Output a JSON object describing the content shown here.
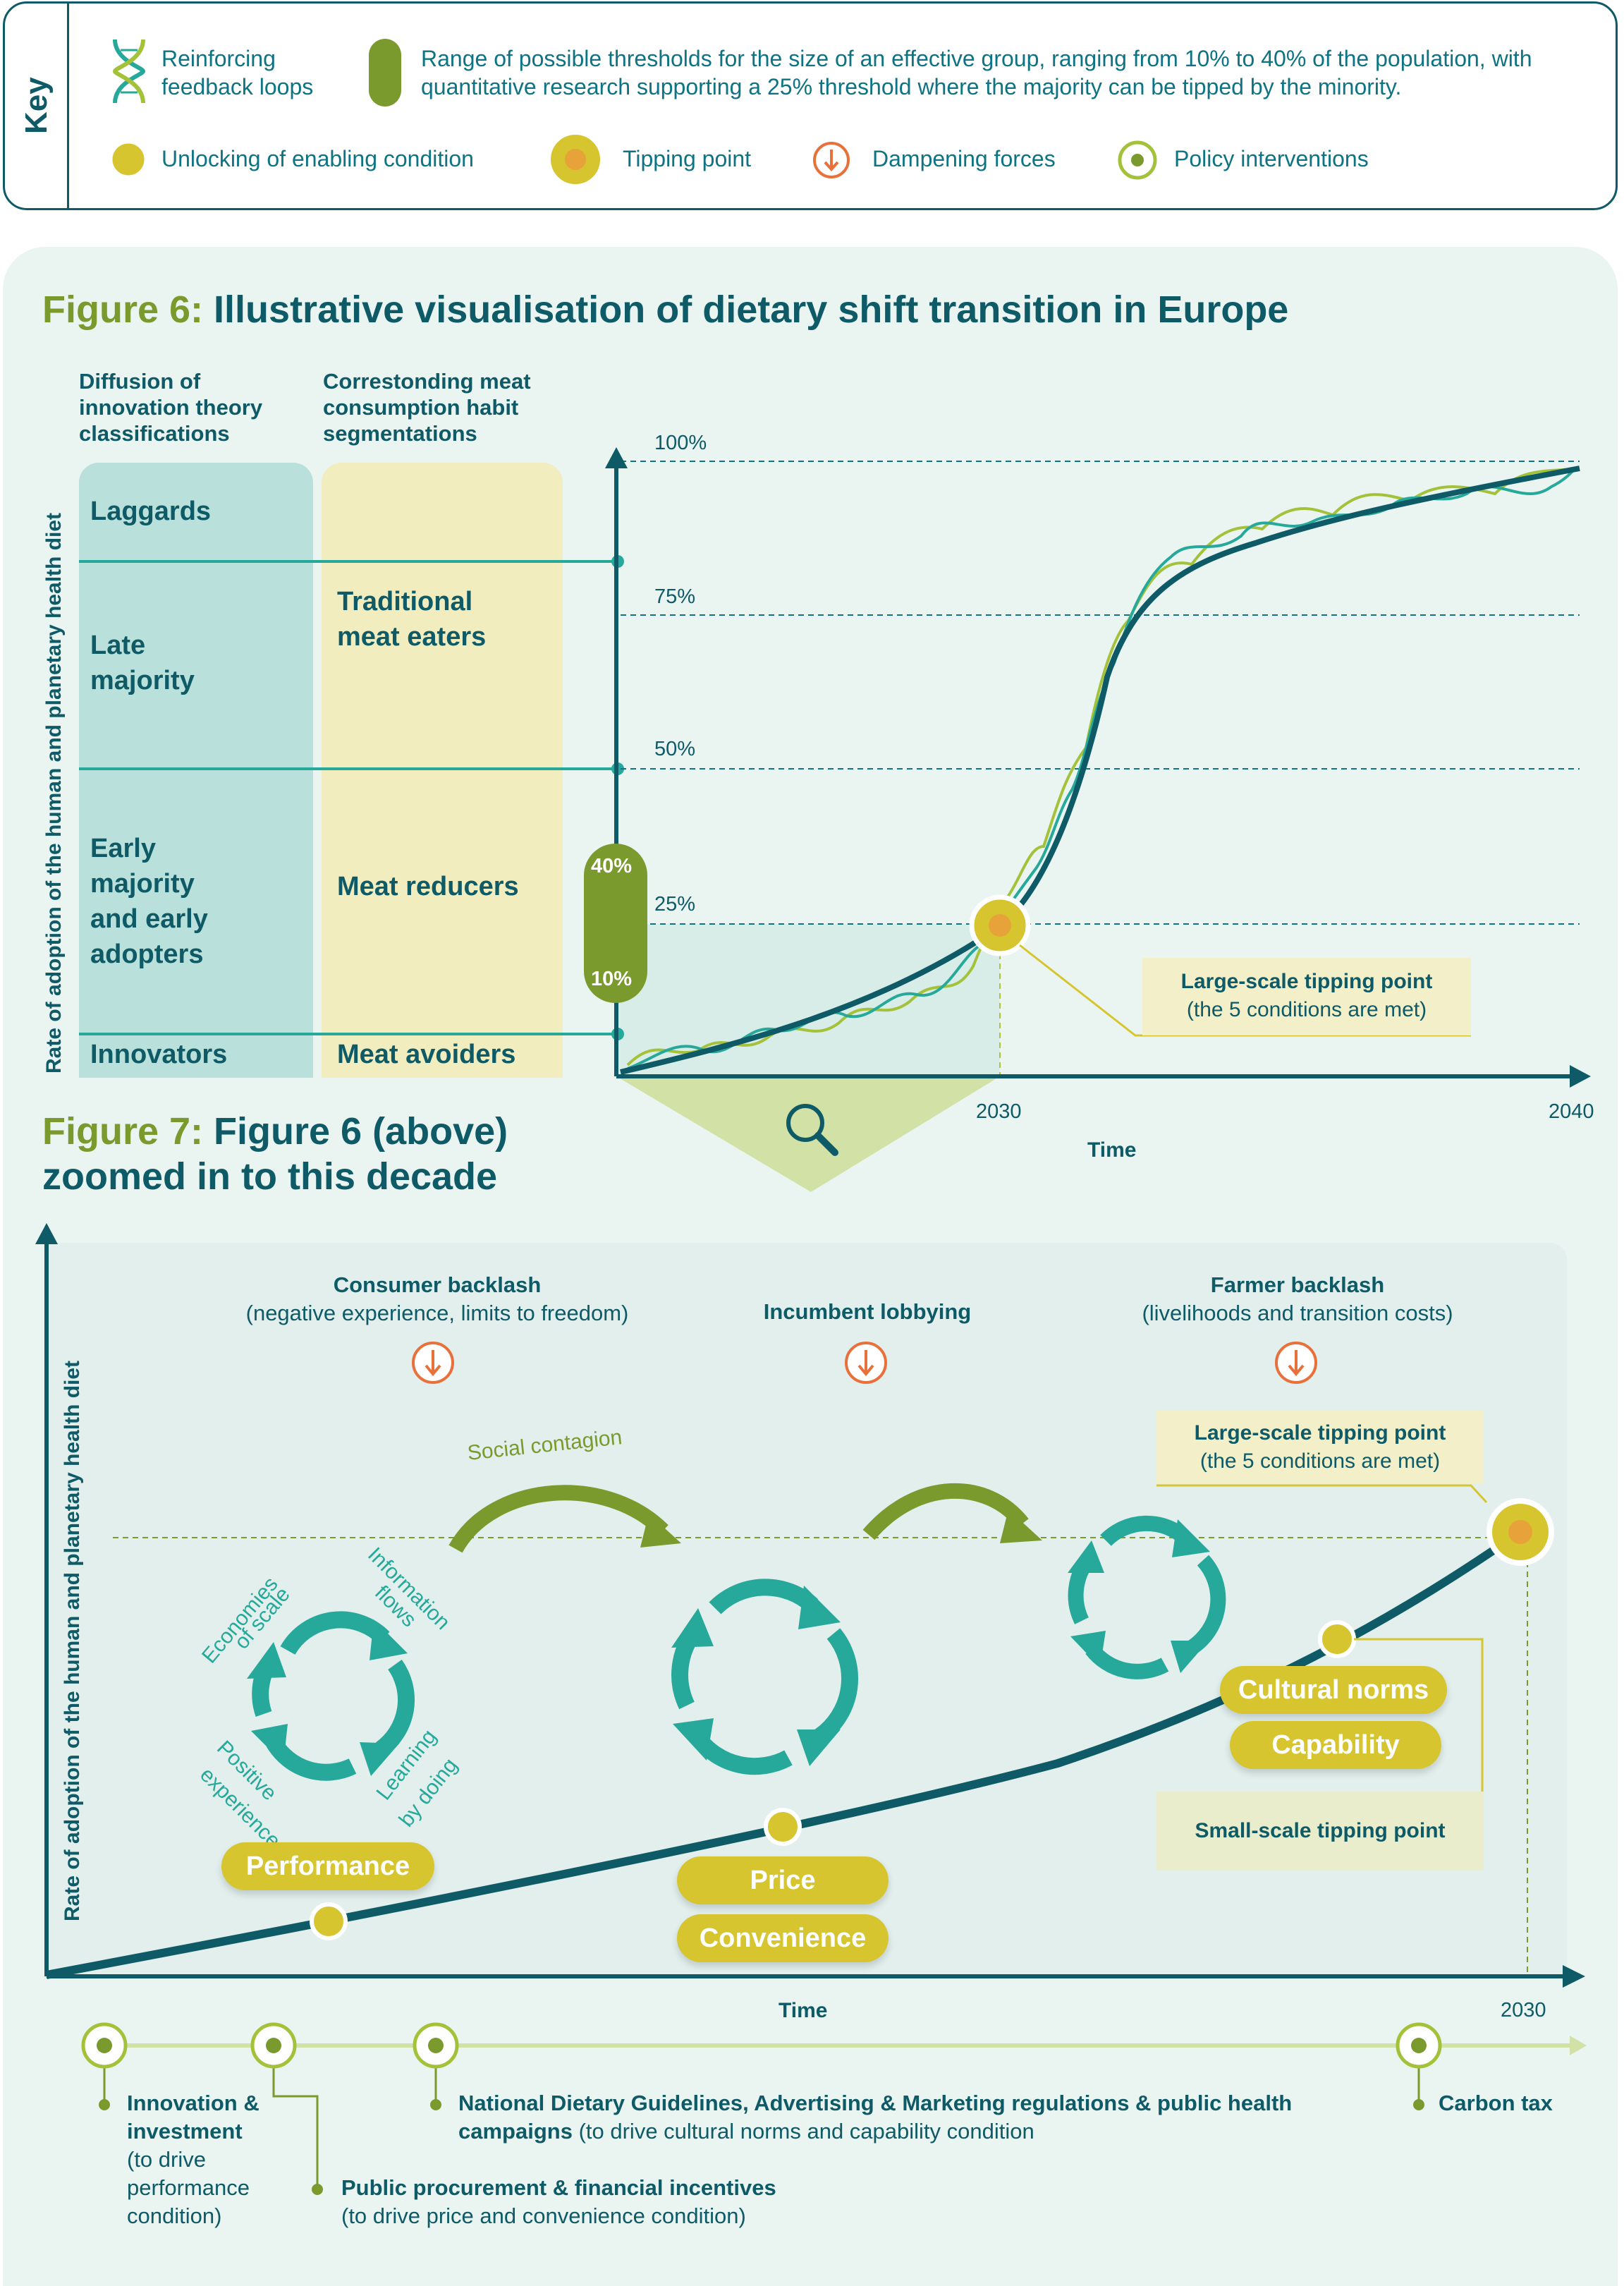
{
  "key": {
    "label": "Key",
    "reinforcing": "Reinforcing feedback loops",
    "range": "Range of possible thresholds for the size of an effective group, ranging from 10% to 40% of the population, with quantitative research supporting a 25% threshold where the majority can be tipped by the minority.",
    "unlocking": "Unlocking of enabling condition",
    "tipping_point": "Tipping point",
    "dampening": "Dampening forces",
    "policy": "Policy interventions"
  },
  "fig6": {
    "title_num": "Figure 6:",
    "title": "Illustrative visualisation of dietary shift transition in Europe",
    "col1_head": "Diffusion of innovation theory classifications",
    "col2_head": "Correstonding meat consumption habit segmentations",
    "laggards": "Laggards",
    "late_majority": "Late majority",
    "early_majority": "Early majority and early adopters",
    "innovators": "Innovators",
    "traditional": "Traditional meat eaters",
    "reducers": "Meat reducers",
    "avoiders": "Meat avoiders",
    "pct_100": "100%",
    "pct_75": "75%",
    "pct_50": "50%",
    "pct_25": "25%",
    "pct_40": "40%",
    "pct_10": "10%",
    "y_label": "Rate of adoption of the human and planetary health diet",
    "x_label": "Time",
    "year_2030": "2030",
    "year_2040": "2040",
    "tip_title": "Large-scale tipping point",
    "tip_sub": "(the 5 conditions are met)"
  },
  "fig7": {
    "title_num": "Figure 7:",
    "title_rest": "Figure 6 (above) zoomed in to this decade",
    "y_label": "Rate of adoption of the human and planetary health diet",
    "x_label": "Time",
    "year_2030": "2030",
    "consumer_backlash": "Consumer backlash",
    "consumer_backlash_sub": "(negative experience, limits to freedom)",
    "incumbent_lobbying": "Incumbent lobbying",
    "farmer_backlash": "Farmer backlash",
    "farmer_backlash_sub": "(livelihoods and transition costs)",
    "tip_title": "Large-scale tipping point",
    "tip_sub": "(the 5 conditions are met)",
    "social_contagion": "Social contagion",
    "loop_labels": [
      "Economies of scale",
      "Information flows",
      "Learning by doing",
      "Positive experience"
    ],
    "performance": "Performance",
    "price": "Price",
    "convenience": "Convenience",
    "cultural_norms": "Cultural norms",
    "capability": "Capability",
    "small_tip": "Small-scale tipping point"
  },
  "policies": {
    "p1_bold": "Innovation & investment",
    "p1_rest": "(to drive performance condition)",
    "p2_bold": "Public procurement & financial incentives",
    "p2_rest": "(to drive price and convenience condition)",
    "p3_bold": "National Dietary Guidelines, Advertising & Marketing regulations & public health campaigns",
    "p3_rest": "(to drive cultural norms and capability condition",
    "p4_bold": "Carbon tax"
  },
  "colors": {
    "dark_teal": "#0e5a66",
    "teal": "#26a99a",
    "olive": "#7a9a2e",
    "yellow": "#d6c52e",
    "orange": "#e8703a",
    "light_teal": "#b9e0da",
    "cream": "#f2edbf"
  }
}
